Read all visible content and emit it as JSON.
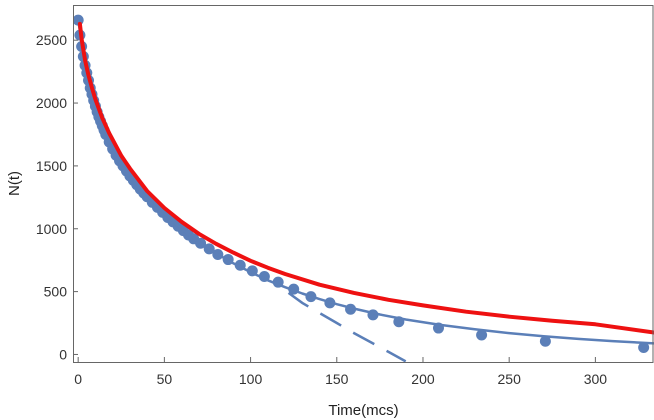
{
  "chart_data": {
    "type": "scatter",
    "xlabel": "Time(mcs)",
    "ylabel": "N(t)",
    "xlim": [
      -3,
      334
    ],
    "ylim": [
      -60,
      2780
    ],
    "x_ticks": [
      0,
      50,
      100,
      150,
      200,
      250,
      300
    ],
    "y_ticks": [
      0,
      500,
      1000,
      1500,
      2000,
      2500
    ],
    "grid": false,
    "legend": "none",
    "colors": {
      "points": "#5b7fb8",
      "fit_blue": "#5b7fb8",
      "fit_red": "#ee1111",
      "frame": "#666666"
    },
    "series": [
      {
        "kind": "points",
        "x": [
          0,
          1,
          2,
          3,
          4,
          5,
          6,
          7,
          8,
          9,
          10,
          11,
          12,
          13,
          14,
          15,
          16,
          18,
          20,
          22,
          24,
          26,
          28,
          30,
          32,
          34,
          36,
          38,
          40,
          43,
          46,
          49,
          52,
          55,
          58,
          61,
          64,
          67,
          71,
          76,
          81,
          87,
          94,
          101,
          108,
          116,
          125,
          135,
          146,
          158,
          171,
          186,
          209,
          234,
          271,
          328
        ],
        "y": [
          2660,
          2540,
          2450,
          2370,
          2300,
          2240,
          2180,
          2120,
          2070,
          2020,
          1975,
          1930,
          1890,
          1855,
          1820,
          1785,
          1750,
          1690,
          1635,
          1585,
          1540,
          1500,
          1460,
          1420,
          1385,
          1350,
          1315,
          1285,
          1255,
          1210,
          1170,
          1130,
          1090,
          1055,
          1020,
          985,
          950,
          920,
          885,
          840,
          795,
          755,
          710,
          665,
          620,
          575,
          520,
          460,
          410,
          360,
          315,
          260,
          210,
          155,
          105,
          55
        ]
      },
      {
        "kind": "line-solid",
        "x": [
          0,
          2,
          5,
          10,
          15,
          20,
          30,
          40,
          50,
          60,
          70,
          80,
          90,
          100,
          110,
          120,
          130,
          140,
          150,
          160,
          175,
          190,
          210,
          230,
          250,
          270,
          290,
          310,
          334
        ],
        "y": [
          2660,
          2480,
          2280,
          2030,
          1840,
          1680,
          1450,
          1270,
          1120,
          1000,
          895,
          805,
          725,
          655,
          590,
          535,
          485,
          440,
          400,
          365,
          318,
          278,
          235,
          200,
          170,
          145,
          124,
          106,
          88
        ]
      },
      {
        "kind": "line-dashed",
        "x": [
          122,
          130,
          140,
          150,
          160,
          170,
          180,
          190
        ],
        "y": [
          490,
          410,
          330,
          250,
          170,
          95,
          20,
          -55
        ]
      },
      {
        "kind": "line-thick",
        "x": [
          1,
          2,
          4,
          6,
          8,
          10,
          14,
          18,
          25,
          30,
          40,
          50,
          60,
          70,
          80,
          90,
          100,
          110,
          120,
          140,
          160,
          180,
          200,
          225,
          250,
          275,
          300,
          334
        ],
        "y": [
          2630,
          2510,
          2340,
          2220,
          2120,
          2030,
          1880,
          1760,
          1580,
          1480,
          1300,
          1165,
          1055,
          960,
          880,
          810,
          745,
          690,
          640,
          555,
          490,
          435,
          390,
          340,
          300,
          268,
          240,
          175
        ]
      }
    ]
  }
}
